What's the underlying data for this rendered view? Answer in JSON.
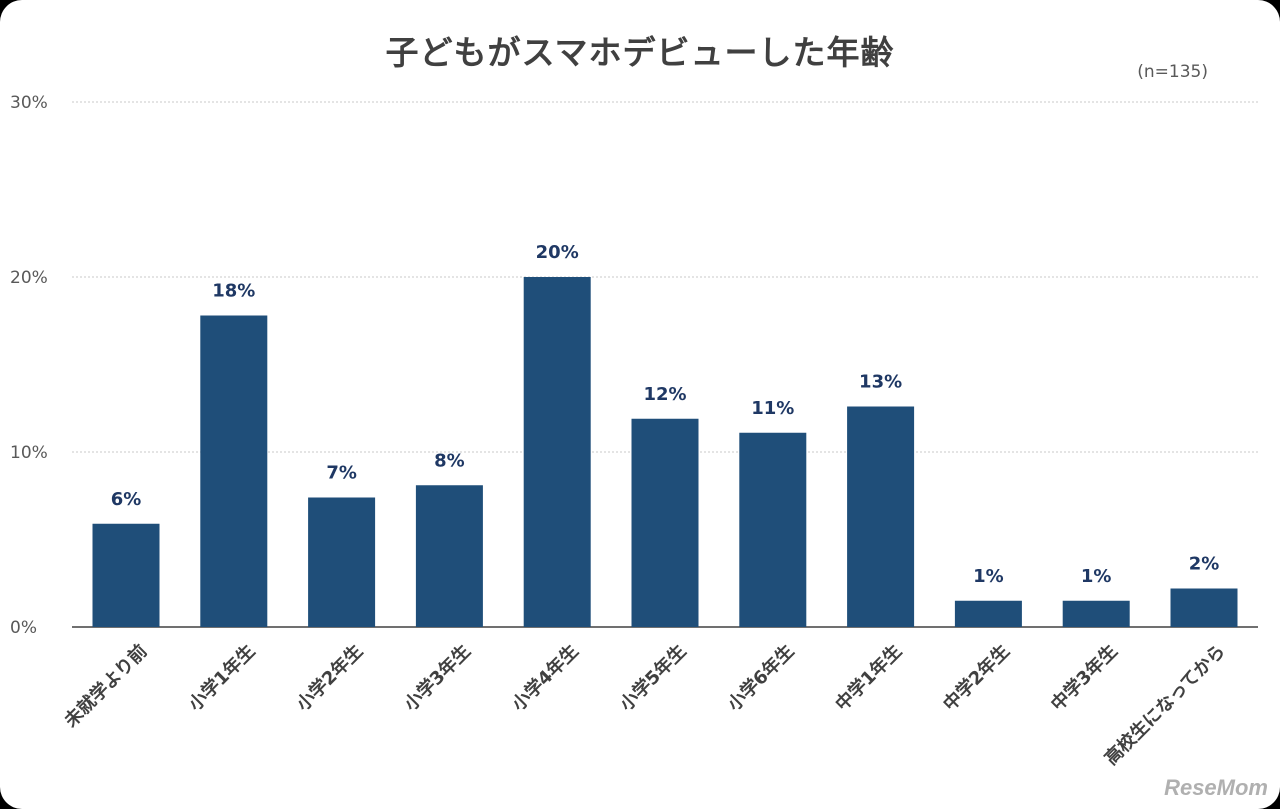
{
  "chart_data": {
    "type": "bar",
    "title": "子どもがスマホデビューした年齢",
    "note": "(n=135)",
    "categories": [
      "未就学より前",
      "小学1年生",
      "小学2年生",
      "小学3年生",
      "小学4年生",
      "小学5年生",
      "小学6年生",
      "中学1年生",
      "中学2年生",
      "中学3年生",
      "高校生になってから"
    ],
    "values": [
      5.9,
      17.8,
      7.4,
      8.1,
      20.0,
      11.9,
      11.1,
      12.6,
      1.5,
      1.5,
      2.2
    ],
    "data_labels": [
      "6%",
      "18%",
      "7%",
      "8%",
      "20%",
      "12%",
      "11%",
      "13%",
      "1%",
      "1%",
      "2%"
    ],
    "y_ticks": [
      0,
      10,
      20,
      30
    ],
    "y_tick_labels": [
      "0%",
      "10%",
      "20%",
      "30%"
    ],
    "ylim": [
      0,
      30
    ],
    "grid": true,
    "bar_color": "#1f4e79"
  },
  "watermark": "ReseMom"
}
